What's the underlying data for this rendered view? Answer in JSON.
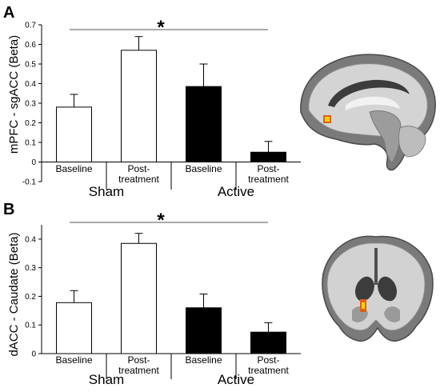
{
  "colors": {
    "axis": "#000000",
    "sham_fill": "#ffffff",
    "active_fill": "#000000",
    "sig_line": "#555555"
  },
  "chart_data": [
    {
      "panel": "A",
      "type": "bar",
      "ylabel": "mPFC - sgACC (Beta)",
      "ylim": [
        -0.1,
        0.7
      ],
      "yticks": [
        "-0.1",
        "0",
        "0.1",
        "0.2",
        "0.3",
        "0.4",
        "0.5",
        "0.6",
        "0.7"
      ],
      "categories": [
        {
          "line1": "Baseline",
          "line2": ""
        },
        {
          "line1": "Post-",
          "line2": "treatment"
        },
        {
          "line1": "Baseline",
          "line2": ""
        },
        {
          "line1": "Post-",
          "line2": "treatment"
        }
      ],
      "groups": [
        "Sham",
        "Active"
      ],
      "values": [
        0.28,
        0.57,
        0.385,
        0.05
      ],
      "errors": [
        0.065,
        0.07,
        0.115,
        0.055
      ],
      "significance": "*",
      "grid": false
    },
    {
      "panel": "B",
      "type": "bar",
      "ylabel": "dACC - Caudate (Beta)",
      "ylim": [
        0,
        0.45
      ],
      "yticks": [
        "0",
        "0.1",
        "0.2",
        "0.3",
        "0.4"
      ],
      "categories": [
        {
          "line1": "Baseline",
          "line2": ""
        },
        {
          "line1": "Post-",
          "line2": "treatment"
        },
        {
          "line1": "Baseline",
          "line2": ""
        },
        {
          "line1": "Post-",
          "line2": "treatment"
        }
      ],
      "groups": [
        "Sham",
        "Active"
      ],
      "values": [
        0.178,
        0.385,
        0.16,
        0.075
      ],
      "errors": [
        0.042,
        0.035,
        0.048,
        0.033
      ],
      "significance": "*",
      "grid": false
    }
  ]
}
